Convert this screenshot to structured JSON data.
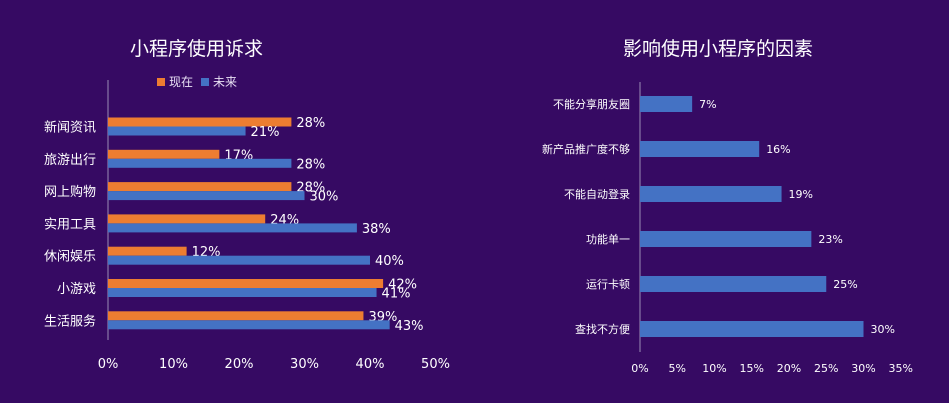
{
  "chart_data": [
    {
      "type": "bar",
      "orientation": "horizontal",
      "title": "小程序使用诉求",
      "categories": [
        "新闻资讯",
        "旅游出行",
        "网上购物",
        "实用工具",
        "休闲娱乐",
        "小游戏",
        "生活服务"
      ],
      "series": [
        {
          "name": "现在",
          "color": "#ed7d31",
          "values": [
            28,
            17,
            28,
            24,
            12,
            42,
            39
          ],
          "labels": [
            "28%",
            "17%",
            "28%",
            "24%",
            "12%",
            "42%",
            "39%"
          ]
        },
        {
          "name": "未来",
          "color": "#4472c4",
          "values": [
            21,
            28,
            30,
            38,
            40,
            41,
            43
          ],
          "labels": [
            "21%",
            "28%",
            "30%",
            "38%",
            "40%",
            "41%",
            "43%"
          ]
        }
      ],
      "xlim": [
        0,
        50
      ],
      "x_ticks": [
        "0%",
        "10%",
        "20%",
        "30%",
        "40%",
        "50%"
      ],
      "legend": "top",
      "grid": false
    },
    {
      "type": "bar",
      "orientation": "horizontal",
      "title": "影响使用小程序的因素",
      "categories": [
        "不能分享朋友圈",
        "新产品推广度不够",
        "不能自动登录",
        "功能单一",
        "运行卡顿",
        "查找不方便"
      ],
      "series": [
        {
          "color": "#4472c4",
          "values": [
            7,
            16,
            19,
            23,
            25,
            30
          ],
          "labels": [
            "7%",
            "16%",
            "19%",
            "23%",
            "25%",
            "30%"
          ]
        }
      ],
      "xlim": [
        0,
        35
      ],
      "x_ticks": [
        "0%",
        "5%",
        "10%",
        "15%",
        "20%",
        "25%",
        "30%",
        "35%"
      ],
      "grid": false
    }
  ]
}
